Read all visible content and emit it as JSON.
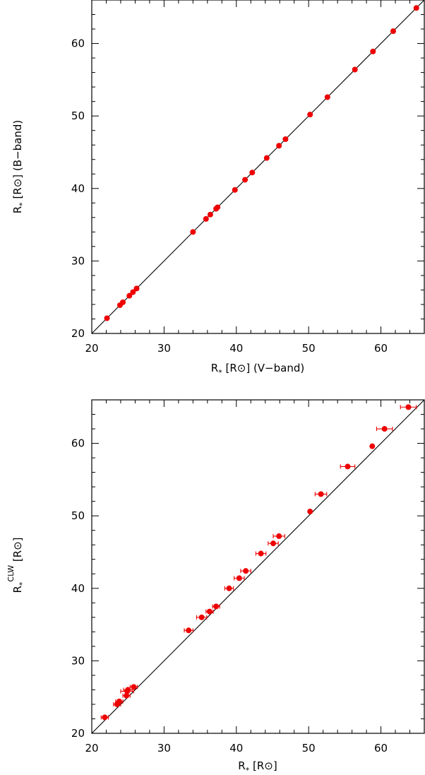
{
  "chart_data": [
    {
      "type": "scatter",
      "xlabel": "R* [R⊙] (V-band)",
      "ylabel": "R* [R⊙] (B-band)",
      "xlim": [
        20,
        66
      ],
      "ylim": [
        20,
        66
      ],
      "xticks": [
        "20",
        "30",
        "40",
        "50",
        "60"
      ],
      "yticks": [
        "20",
        "30",
        "40",
        "50",
        "60"
      ],
      "reference_line": "y = x",
      "marker_color": "#ee0000",
      "points": [
        {
          "x": 22.1,
          "y": 22.1
        },
        {
          "x": 23.9,
          "y": 23.9
        },
        {
          "x": 24.3,
          "y": 24.3
        },
        {
          "x": 25.2,
          "y": 25.2
        },
        {
          "x": 25.7,
          "y": 25.7
        },
        {
          "x": 26.2,
          "y": 26.2
        },
        {
          "x": 34.0,
          "y": 34.0
        },
        {
          "x": 35.8,
          "y": 35.8
        },
        {
          "x": 36.4,
          "y": 36.4
        },
        {
          "x": 37.2,
          "y": 37.2
        },
        {
          "x": 37.4,
          "y": 37.4
        },
        {
          "x": 39.8,
          "y": 39.8
        },
        {
          "x": 41.2,
          "y": 41.2
        },
        {
          "x": 42.2,
          "y": 42.2
        },
        {
          "x": 44.2,
          "y": 44.2
        },
        {
          "x": 45.9,
          "y": 45.9
        },
        {
          "x": 46.8,
          "y": 46.8
        },
        {
          "x": 50.2,
          "y": 50.2
        },
        {
          "x": 52.6,
          "y": 52.6
        },
        {
          "x": 56.4,
          "y": 56.4
        },
        {
          "x": 58.9,
          "y": 58.9
        },
        {
          "x": 61.7,
          "y": 61.7
        },
        {
          "x": 64.9,
          "y": 64.9
        }
      ]
    },
    {
      "type": "scatter",
      "xlabel": "R* [R⊙]",
      "ylabel": "R*CLW [R⊙]",
      "xlim": [
        20,
        66
      ],
      "ylim": [
        20,
        66
      ],
      "xticks": [
        "20",
        "30",
        "40",
        "50",
        "60"
      ],
      "yticks": [
        "20",
        "30",
        "40",
        "50",
        "60"
      ],
      "reference_line": "y = x",
      "marker_color": "#ee0000",
      "points": [
        {
          "x": 21.8,
          "y": 22.2,
          "xerr": 0.5
        },
        {
          "x": 23.5,
          "y": 24.0,
          "xerr": 0.5
        },
        {
          "x": 23.8,
          "y": 24.4,
          "xerr": 0.5
        },
        {
          "x": 24.8,
          "y": 25.2,
          "xerr": 0.5
        },
        {
          "x": 24.9,
          "y": 25.8,
          "xerr": 0.9
        },
        {
          "x": 25.0,
          "y": 26.0,
          "xerr": 0.6
        },
        {
          "x": 25.8,
          "y": 26.4,
          "xerr": 0.5
        },
        {
          "x": 33.4,
          "y": 34.2,
          "xerr": 0.6
        },
        {
          "x": 35.2,
          "y": 36.0,
          "xerr": 0.7
        },
        {
          "x": 36.3,
          "y": 36.8,
          "xerr": 0.5
        },
        {
          "x": 37.2,
          "y": 37.5,
          "xerr": 0.5
        },
        {
          "x": 39.0,
          "y": 40.0,
          "xerr": 0.6
        },
        {
          "x": 40.4,
          "y": 41.4,
          "xerr": 0.7
        },
        {
          "x": 41.3,
          "y": 42.4,
          "xerr": 0.7
        },
        {
          "x": 43.4,
          "y": 44.8,
          "xerr": 0.7
        },
        {
          "x": 45.1,
          "y": 46.2,
          "xerr": 0.7
        },
        {
          "x": 45.9,
          "y": 47.2,
          "xerr": 0.8
        },
        {
          "x": 50.2,
          "y": 50.6,
          "xerr": 0.0
        },
        {
          "x": 51.7,
          "y": 53.0,
          "xerr": 0.8
        },
        {
          "x": 55.4,
          "y": 56.8,
          "xerr": 1.0
        },
        {
          "x": 58.8,
          "y": 59.6,
          "xerr": 0.0
        },
        {
          "x": 60.5,
          "y": 62.0,
          "xerr": 1.1
        },
        {
          "x": 63.8,
          "y": 65.0,
          "xerr": 1.1
        }
      ]
    }
  ]
}
